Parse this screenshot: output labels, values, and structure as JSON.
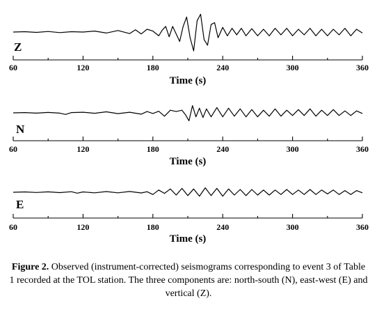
{
  "chart_data": [
    {
      "type": "line",
      "component": "Z",
      "xlabel": "Time (s)",
      "xlim": [
        60,
        360
      ],
      "xticks": [
        60,
        120,
        180,
        240,
        300,
        360
      ],
      "x": [
        60,
        70,
        80,
        90,
        100,
        110,
        120,
        130,
        140,
        150,
        160,
        165,
        170,
        175,
        180,
        185,
        188,
        191,
        194,
        197,
        200,
        203,
        206,
        209,
        212,
        215,
        218,
        221,
        224,
        227,
        230,
        233,
        236,
        240,
        244,
        248,
        252,
        256,
        260,
        265,
        270,
        275,
        280,
        285,
        290,
        295,
        300,
        305,
        310,
        315,
        320,
        325,
        330,
        335,
        340,
        345,
        350,
        355,
        360
      ],
      "y": [
        0.0,
        0.02,
        -0.02,
        0.03,
        -0.03,
        0.02,
        0.0,
        0.05,
        -0.05,
        0.08,
        -0.08,
        0.12,
        -0.1,
        0.15,
        0.05,
        -0.2,
        0.1,
        0.3,
        -0.25,
        0.3,
        -0.1,
        -0.5,
        0.3,
        0.8,
        -0.3,
        -1.0,
        0.6,
        0.95,
        -0.4,
        -0.7,
        0.4,
        0.5,
        -0.3,
        0.25,
        -0.2,
        0.2,
        -0.15,
        0.2,
        -0.2,
        0.18,
        -0.2,
        0.15,
        -0.2,
        0.2,
        -0.15,
        0.2,
        -0.2,
        0.15,
        -0.15,
        0.2,
        -0.2,
        0.15,
        -0.2,
        0.15,
        -0.15,
        0.2,
        -0.2,
        0.15,
        -0.05
      ],
      "ylim": [
        -1,
        1
      ]
    },
    {
      "type": "line",
      "component": "N",
      "xlabel": "Time (s)",
      "xlim": [
        60,
        360
      ],
      "xticks": [
        60,
        120,
        180,
        240,
        300,
        360
      ],
      "x": [
        60,
        70,
        80,
        90,
        100,
        105,
        110,
        120,
        130,
        140,
        150,
        160,
        170,
        175,
        180,
        185,
        190,
        195,
        200,
        205,
        208,
        211,
        214,
        217,
        220,
        223,
        226,
        230,
        235,
        240,
        245,
        250,
        255,
        260,
        265,
        270,
        275,
        280,
        285,
        290,
        295,
        300,
        305,
        310,
        315,
        320,
        325,
        330,
        335,
        340,
        345,
        350,
        355,
        360
      ],
      "y": [
        0.0,
        0.02,
        -0.02,
        0.03,
        -0.02,
        -0.12,
        0.02,
        0.05,
        -0.03,
        0.08,
        -0.06,
        0.05,
        -0.1,
        0.1,
        -0.05,
        0.12,
        -0.25,
        0.2,
        0.1,
        0.2,
        -0.15,
        -0.6,
        0.55,
        -0.3,
        0.35,
        -0.35,
        0.3,
        -0.3,
        0.4,
        -0.3,
        0.35,
        -0.25,
        0.3,
        -0.3,
        0.25,
        -0.3,
        0.2,
        -0.25,
        0.3,
        -0.25,
        0.2,
        -0.2,
        0.25,
        -0.2,
        0.3,
        -0.25,
        0.2,
        -0.2,
        0.25,
        -0.2,
        0.15,
        -0.2,
        0.15,
        -0.05
      ],
      "ylim": [
        -1,
        1
      ]
    },
    {
      "type": "line",
      "component": "E",
      "xlabel": "Time (s)",
      "xlim": [
        60,
        360
      ],
      "xticks": [
        60,
        120,
        180,
        240,
        300,
        360
      ],
      "x": [
        60,
        70,
        80,
        90,
        100,
        110,
        115,
        120,
        130,
        140,
        150,
        160,
        170,
        175,
        180,
        185,
        190,
        195,
        200,
        205,
        210,
        215,
        220,
        225,
        230,
        235,
        240,
        245,
        250,
        255,
        260,
        265,
        270,
        275,
        280,
        285,
        290,
        295,
        300,
        305,
        310,
        315,
        320,
        325,
        330,
        335,
        340,
        345,
        350,
        355,
        360
      ],
      "y": [
        0.0,
        0.03,
        -0.02,
        0.04,
        -0.03,
        0.05,
        -0.08,
        0.03,
        -0.05,
        0.06,
        -0.05,
        0.07,
        -0.06,
        0.05,
        -0.2,
        0.2,
        -0.1,
        0.3,
        -0.25,
        0.35,
        -0.3,
        0.3,
        -0.35,
        0.4,
        -0.3,
        0.35,
        -0.35,
        0.3,
        -0.25,
        0.25,
        -0.3,
        0.25,
        -0.25,
        0.2,
        -0.25,
        0.2,
        -0.2,
        0.25,
        -0.2,
        0.2,
        -0.2,
        0.25,
        -0.2,
        0.2,
        -0.15,
        0.2,
        -0.2,
        0.15,
        -0.2,
        0.15,
        -0.05
      ],
      "ylim": [
        -1,
        1
      ]
    }
  ],
  "caption": {
    "lead": "Figure 2.",
    "text": " Observed (instrument-corrected) seismograms corresponding to event 3 of Table 1 recorded at the TOL station. The three components are: north-south (N), east-west (E) and vertical (Z)."
  },
  "colors": {
    "trace": "#000000",
    "axis": "#000000",
    "background": "#ffffff"
  }
}
